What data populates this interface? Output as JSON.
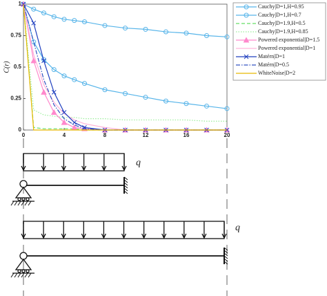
{
  "chart_data": {
    "type": "line",
    "ylabel": "C(r)",
    "x": [
      0,
      1,
      2,
      3,
      4,
      5,
      6,
      8,
      10,
      12,
      14,
      16,
      18,
      20
    ],
    "xlim": [
      0,
      20
    ],
    "xticks": [
      0,
      4,
      8,
      12,
      16,
      20
    ],
    "ylim": [
      0,
      1
    ],
    "yticks": [
      0,
      0.25,
      0.5,
      0.75,
      1
    ],
    "legend": "outside-right",
    "series": [
      {
        "name": "Cauchy|D=1,H=0.95",
        "color": "#56b4e9",
        "linestyle": "solid",
        "marker": "circle",
        "values": [
          1,
          0.96,
          0.93,
          0.9,
          0.88,
          0.87,
          0.86,
          0.83,
          0.81,
          0.8,
          0.78,
          0.77,
          0.75,
          0.74
        ]
      },
      {
        "name": "Cauchy|D=1,H=0.7",
        "color": "#56b4e9",
        "linestyle": "solid",
        "marker": "circle",
        "values": [
          1,
          0.7,
          0.56,
          0.48,
          0.43,
          0.4,
          0.37,
          0.32,
          0.29,
          0.26,
          0.23,
          0.21,
          0.19,
          0.17
        ]
      },
      {
        "name": "Cauchy|D=1.9,H=0.5",
        "color": "#66dd66",
        "linestyle": "dashed",
        "marker": "none",
        "values": [
          1,
          0.02,
          0.01,
          0.01,
          0.01,
          0.01,
          0,
          0,
          0,
          0,
          0,
          0,
          0,
          0
        ]
      },
      {
        "name": "Cauchy|D=1.9,H=0.85",
        "color": "#99ee99",
        "linestyle": "dotted",
        "marker": "none",
        "values": [
          1,
          0.16,
          0.12,
          0.11,
          0.1,
          0.1,
          0.09,
          0.09,
          0.08,
          0.08,
          0.08,
          0.08,
          0.07,
          0.07
        ]
      },
      {
        "name": "Powered exponential|D=1.5",
        "color": "#ff88cc",
        "linestyle": "solid",
        "marker": "triangle",
        "values": [
          1,
          0.55,
          0.3,
          0.14,
          0.06,
          0.02,
          0.01,
          0,
          0,
          0,
          0,
          0,
          0,
          0
        ]
      },
      {
        "name": "Powered exponential|D=1",
        "color": "#ffb3d9",
        "linestyle": "solid",
        "marker": "none",
        "values": [
          1,
          0.6,
          0.36,
          0.22,
          0.13,
          0.08,
          0.05,
          0.02,
          0,
          0,
          0,
          0,
          0,
          0
        ]
      },
      {
        "name": "Matérn|D=1",
        "color": "#1f3fbf",
        "linestyle": "solid",
        "marker": "cross",
        "values": [
          1,
          0.85,
          0.55,
          0.3,
          0.14,
          0.06,
          0.02,
          0,
          0,
          0,
          0,
          0,
          0,
          0
        ]
      },
      {
        "name": "Matérn|D=0.5",
        "color": "#3050c0",
        "linestyle": "dashdot",
        "marker": "none",
        "values": [
          1,
          0.7,
          0.4,
          0.2,
          0.09,
          0.04,
          0.01,
          0,
          0,
          0,
          0,
          0,
          0,
          0
        ]
      },
      {
        "name": "WhiteNoise|D=2",
        "color": "#e8b800",
        "linestyle": "solid",
        "marker": "none",
        "values": [
          1,
          0,
          0,
          0,
          0,
          0,
          0,
          0,
          0,
          0,
          0,
          0,
          0,
          0
        ]
      }
    ]
  },
  "diagram": {
    "labels": [
      "q",
      "q"
    ]
  }
}
